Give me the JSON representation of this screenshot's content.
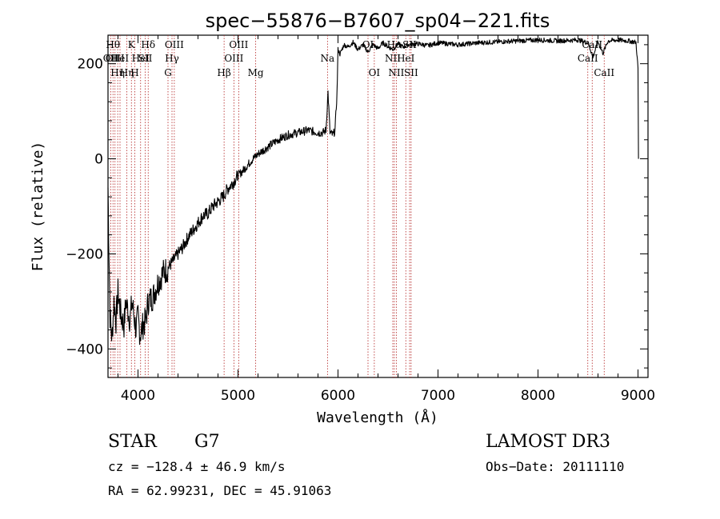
{
  "chart_data": {
    "type": "line",
    "title": "spec−55876−B7607_sp04−221.fits",
    "xlabel": "Wavelength (Å)",
    "ylabel": "Flux (relative)",
    "xlim": [
      3700,
      9100
    ],
    "ylim": [
      -460,
      260
    ],
    "x_ticks": [
      4000,
      5000,
      6000,
      7000,
      8000,
      9000
    ],
    "y_ticks": [
      -400,
      -200,
      0,
      200
    ],
    "series": [
      {
        "name": "flux",
        "points": [
          [
            3700,
            -60
          ],
          [
            3710,
            -200
          ],
          [
            3720,
            -330
          ],
          [
            3740,
            -380
          ],
          [
            3760,
            -300
          ],
          [
            3780,
            -340
          ],
          [
            3800,
            -280
          ],
          [
            3830,
            -330
          ],
          [
            3860,
            -350
          ],
          [
            3880,
            -300
          ],
          [
            3900,
            -320
          ],
          [
            3920,
            -340
          ],
          [
            3940,
            -300
          ],
          [
            3960,
            -330
          ],
          [
            3980,
            -360
          ],
          [
            4000,
            -330
          ],
          [
            4020,
            -370
          ],
          [
            4050,
            -350
          ],
          [
            4080,
            -340
          ],
          [
            4100,
            -300
          ],
          [
            4150,
            -290
          ],
          [
            4200,
            -260
          ],
          [
            4250,
            -240
          ],
          [
            4300,
            -230
          ],
          [
            4350,
            -215
          ],
          [
            4400,
            -200
          ],
          [
            4450,
            -185
          ],
          [
            4500,
            -165
          ],
          [
            4550,
            -150
          ],
          [
            4600,
            -135
          ],
          [
            4650,
            -120
          ],
          [
            4700,
            -115
          ],
          [
            4750,
            -100
          ],
          [
            4800,
            -90
          ],
          [
            4850,
            -80
          ],
          [
            4900,
            -62
          ],
          [
            4950,
            -50
          ],
          [
            5000,
            -35
          ],
          [
            5050,
            -25
          ],
          [
            5100,
            -12
          ],
          [
            5150,
            0
          ],
          [
            5200,
            10
          ],
          [
            5300,
            25
          ],
          [
            5400,
            40
          ],
          [
            5500,
            50
          ],
          [
            5600,
            55
          ],
          [
            5700,
            60
          ],
          [
            5800,
            55
          ],
          [
            5850,
            55
          ],
          [
            5880,
            60
          ],
          [
            5900,
            140
          ],
          [
            5920,
            55
          ],
          [
            5950,
            50
          ],
          [
            5970,
            60
          ],
          [
            5990,
            140
          ],
          [
            6000,
            230
          ],
          [
            6020,
            220
          ],
          [
            6060,
            240
          ],
          [
            6100,
            235
          ],
          [
            6150,
            245
          ],
          [
            6200,
            230
          ],
          [
            6250,
            240
          ],
          [
            6300,
            225
          ],
          [
            6350,
            240
          ],
          [
            6400,
            232
          ],
          [
            6450,
            244
          ],
          [
            6500,
            236
          ],
          [
            6550,
            230
          ],
          [
            6600,
            242
          ],
          [
            6650,
            235
          ],
          [
            6700,
            240
          ],
          [
            6800,
            242
          ],
          [
            6900,
            238
          ],
          [
            7000,
            244
          ],
          [
            7200,
            240
          ],
          [
            7400,
            244
          ],
          [
            7600,
            246
          ],
          [
            7800,
            248
          ],
          [
            8000,
            250
          ],
          [
            8200,
            248
          ],
          [
            8400,
            250
          ],
          [
            8500,
            244
          ],
          [
            8550,
            215
          ],
          [
            8600,
            246
          ],
          [
            8650,
            222
          ],
          [
            8700,
            248
          ],
          [
            8800,
            250
          ],
          [
            8900,
            248
          ],
          [
            8980,
            245
          ],
          [
            9000,
            190
          ],
          [
            9005,
            0
          ]
        ]
      }
    ],
    "lines": [
      {
        "w": 3727,
        "label": "OII",
        "row": 1
      },
      {
        "w": 3750,
        "label": "Hθ",
        "row": 0
      },
      {
        "w": 3770,
        "label": "OIII",
        "row": 1
      },
      {
        "w": 3797,
        "label": "Hη",
        "row": 2
      },
      {
        "w": 3820,
        "label": "HeI",
        "row": 1
      },
      {
        "w": 3889,
        "label": "Hη",
        "row": 2
      },
      {
        "w": 3934,
        "label": "K",
        "row": 0
      },
      {
        "w": 3968,
        "label": "H",
        "row": 2
      },
      {
        "w": 4026,
        "label": "HeI",
        "row": 1
      },
      {
        "w": 4072,
        "label": "SII",
        "row": 1
      },
      {
        "w": 4102,
        "label": "Hδ",
        "row": 0
      },
      {
        "w": 4300,
        "label": "G",
        "row": 2
      },
      {
        "w": 4340,
        "label": "Hγ",
        "row": 1
      },
      {
        "w": 4363,
        "label": "OIII",
        "row": 0
      },
      {
        "w": 4861,
        "label": "Hβ",
        "row": 2
      },
      {
        "w": 4959,
        "label": "OIII",
        "row": 1
      },
      {
        "w": 5007,
        "label": "OIII",
        "row": 0
      },
      {
        "w": 5177,
        "label": "Mg",
        "row": 2
      },
      {
        "w": 5895,
        "label": "Na",
        "row": 1
      },
      {
        "w": 6300,
        "label": "OI",
        "row": 0
      },
      {
        "w": 6363,
        "label": "OI",
        "row": 2
      },
      {
        "w": 6548,
        "label": "NII",
        "row": 1
      },
      {
        "w": 6563,
        "label": "Hα",
        "row": 0
      },
      {
        "w": 6583,
        "label": "NII",
        "row": 2
      },
      {
        "w": 6678,
        "label": "HeI",
        "row": 1
      },
      {
        "w": 6716,
        "label": "SII",
        "row": 0
      },
      {
        "w": 6731,
        "label": "SII",
        "row": 2
      },
      {
        "w": 8498,
        "label": "CaII",
        "row": 1
      },
      {
        "w": 8542,
        "label": "CaII",
        "row": 0
      },
      {
        "w": 8662,
        "label": "CaII",
        "row": 2
      }
    ]
  },
  "info": {
    "class_label": "STAR",
    "subclass_label": "G7",
    "survey": "LAMOST DR3",
    "cz": "cz = −128.4 ± 46.9 km/s",
    "obs_date": "Obs−Date: 20111110",
    "coords": "RA =  62.99231, DEC =  45.91063"
  }
}
